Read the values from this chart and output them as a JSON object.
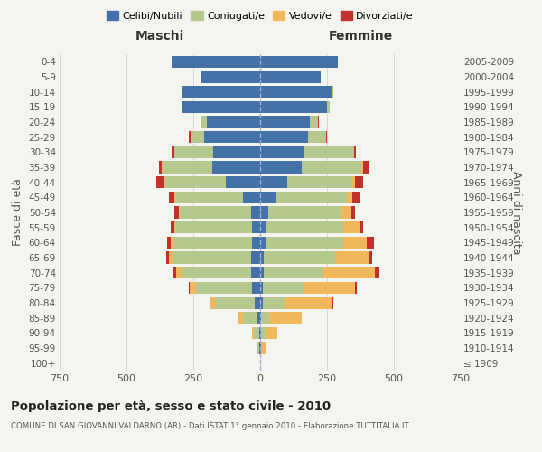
{
  "age_groups": [
    "100+",
    "95-99",
    "90-94",
    "85-89",
    "80-84",
    "75-79",
    "70-74",
    "65-69",
    "60-64",
    "55-59",
    "50-54",
    "45-49",
    "40-44",
    "35-39",
    "30-34",
    "25-29",
    "20-24",
    "15-19",
    "10-14",
    "5-9",
    "0-4"
  ],
  "birth_years": [
    "≤ 1909",
    "1910-1914",
    "1915-1919",
    "1920-1924",
    "1925-1929",
    "1930-1934",
    "1935-1939",
    "1940-1944",
    "1945-1949",
    "1950-1954",
    "1955-1959",
    "1960-1964",
    "1965-1969",
    "1970-1974",
    "1975-1979",
    "1980-1984",
    "1985-1989",
    "1990-1994",
    "1995-1999",
    "2000-2004",
    "2005-2009"
  ],
  "maschi": {
    "celibi": [
      0,
      2,
      5,
      10,
      20,
      30,
      35,
      35,
      30,
      30,
      35,
      65,
      130,
      180,
      175,
      210,
      200,
      290,
      290,
      220,
      330
    ],
    "coniugati": [
      0,
      5,
      20,
      55,
      145,
      210,
      260,
      290,
      295,
      285,
      265,
      250,
      225,
      185,
      145,
      50,
      20,
      5,
      2,
      0,
      0
    ],
    "vedovi": [
      0,
      2,
      5,
      15,
      25,
      25,
      20,
      15,
      8,
      5,
      5,
      5,
      3,
      2,
      1,
      1,
      0,
      0,
      0,
      0,
      0
    ],
    "divorziati": [
      0,
      0,
      0,
      0,
      0,
      2,
      10,
      10,
      15,
      15,
      15,
      20,
      30,
      10,
      10,
      5,
      2,
      0,
      0,
      0,
      0
    ]
  },
  "femmine": {
    "nubili": [
      0,
      2,
      5,
      5,
      10,
      10,
      15,
      15,
      20,
      25,
      30,
      60,
      100,
      155,
      165,
      180,
      185,
      250,
      270,
      225,
      290
    ],
    "coniugate": [
      0,
      5,
      15,
      30,
      80,
      155,
      220,
      265,
      290,
      285,
      270,
      265,
      245,
      225,
      185,
      65,
      30,
      10,
      5,
      0,
      0
    ],
    "vedove": [
      0,
      15,
      45,
      120,
      180,
      190,
      195,
      130,
      90,
      60,
      40,
      20,
      10,
      5,
      3,
      2,
      1,
      0,
      0,
      0,
      0
    ],
    "divorziate": [
      0,
      0,
      0,
      0,
      2,
      8,
      15,
      10,
      25,
      15,
      15,
      30,
      30,
      25,
      5,
      3,
      2,
      0,
      0,
      0,
      0
    ]
  },
  "colors": {
    "celibi": "#4472a8",
    "coniugati": "#b5c98e",
    "vedovi": "#f0b85a",
    "divorziati": "#c0312b"
  },
  "xlim": 750,
  "title": "Popolazione per età, sesso e stato civile - 2010",
  "subtitle": "COMUNE DI SAN GIOVANNI VALDARNO (AR) - Dati ISTAT 1° gennaio 2010 - Elaborazione TUTTITALIA.IT",
  "ylabel": "Fasce di età",
  "ylabel_right": "Anni di nascita",
  "legend_labels": [
    "Celibi/Nubili",
    "Coniugati/e",
    "Vedovi/e",
    "Divorziati/e"
  ],
  "maschi_label": "Maschi",
  "femmine_label": "Femmine",
  "bg_color": "#f5f5f0"
}
